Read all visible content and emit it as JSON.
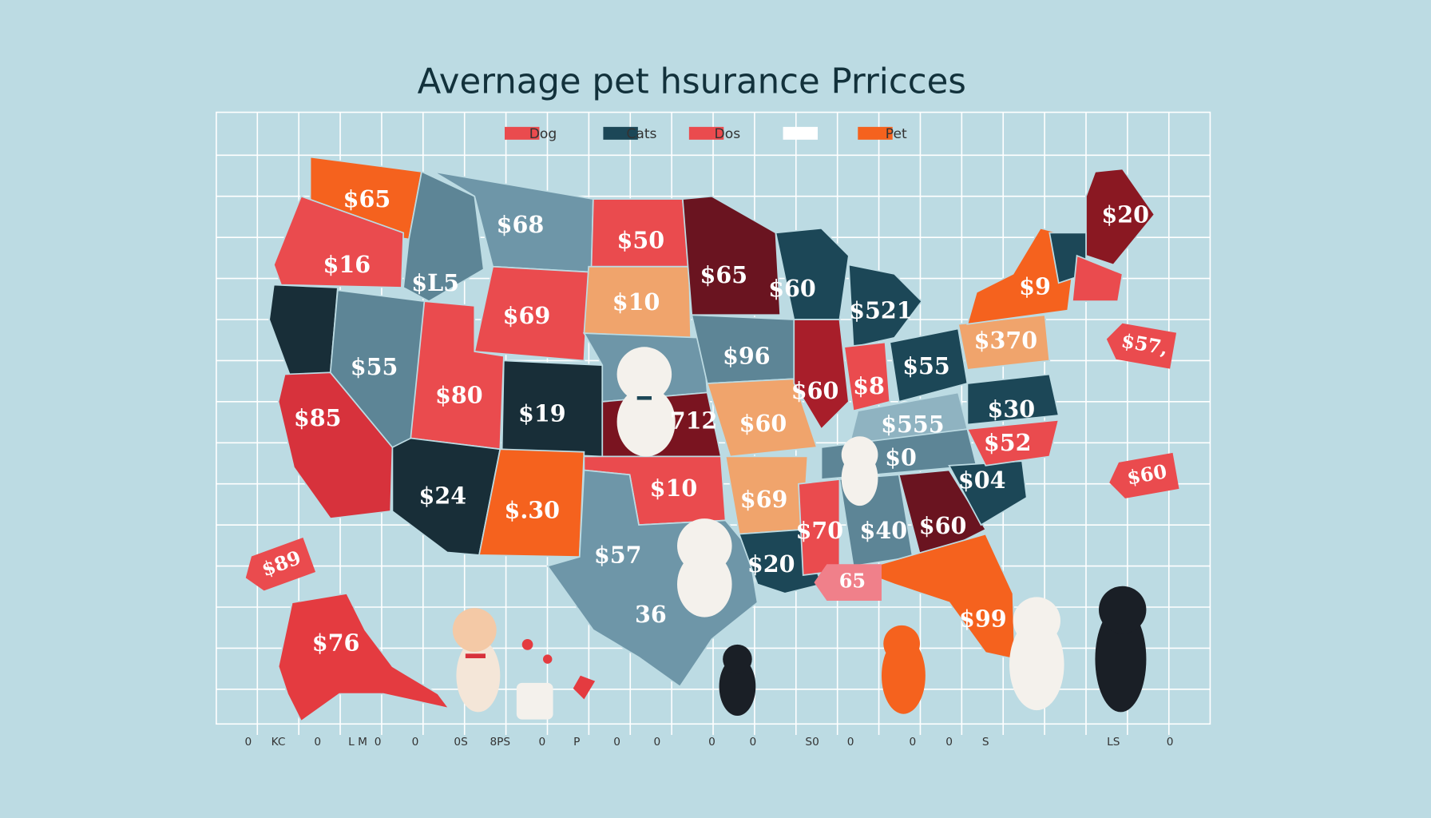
{
  "header": {
    "title": "Avernage pet hsurance  Prricces"
  },
  "legend": {
    "items": [
      {
        "label": "Dog",
        "color": "#ea4b4e"
      },
      {
        "label": "Cats",
        "color": "#1c4757"
      },
      {
        "label": "Dos",
        "color": "#ea4b4e"
      },
      {
        "label": "Pet",
        "color": "#f5621e"
      }
    ]
  },
  "map": {
    "price_labels": [
      "$65",
      "$16",
      "$85",
      "$68",
      "$L5",
      "$55",
      "$69",
      "$50",
      "$10",
      "$65",
      "$60",
      "$521",
      "$80",
      "$19",
      "$96",
      "$60",
      "$8",
      "$55",
      "$370",
      "$20",
      "$9",
      "$24",
      "$.30",
      "$10",
      "$69",
      "$70",
      "$40",
      "$60",
      "$04",
      "$52",
      "$30",
      "$57",
      "$20",
      "36",
      "$99",
      "$76",
      "$60",
      "$555",
      "712",
      "$0"
    ],
    "price_tags": [
      "$89",
      "65",
      "$57,",
      "$60"
    ]
  },
  "axis": {
    "labels": [
      "0",
      "KC",
      "0",
      "L M",
      "0",
      "0",
      "0S",
      "8PS",
      "0",
      "P",
      "0",
      "0",
      "0",
      "0",
      "S0",
      "0",
      "0",
      "0",
      "S",
      "LS",
      "0"
    ]
  }
}
